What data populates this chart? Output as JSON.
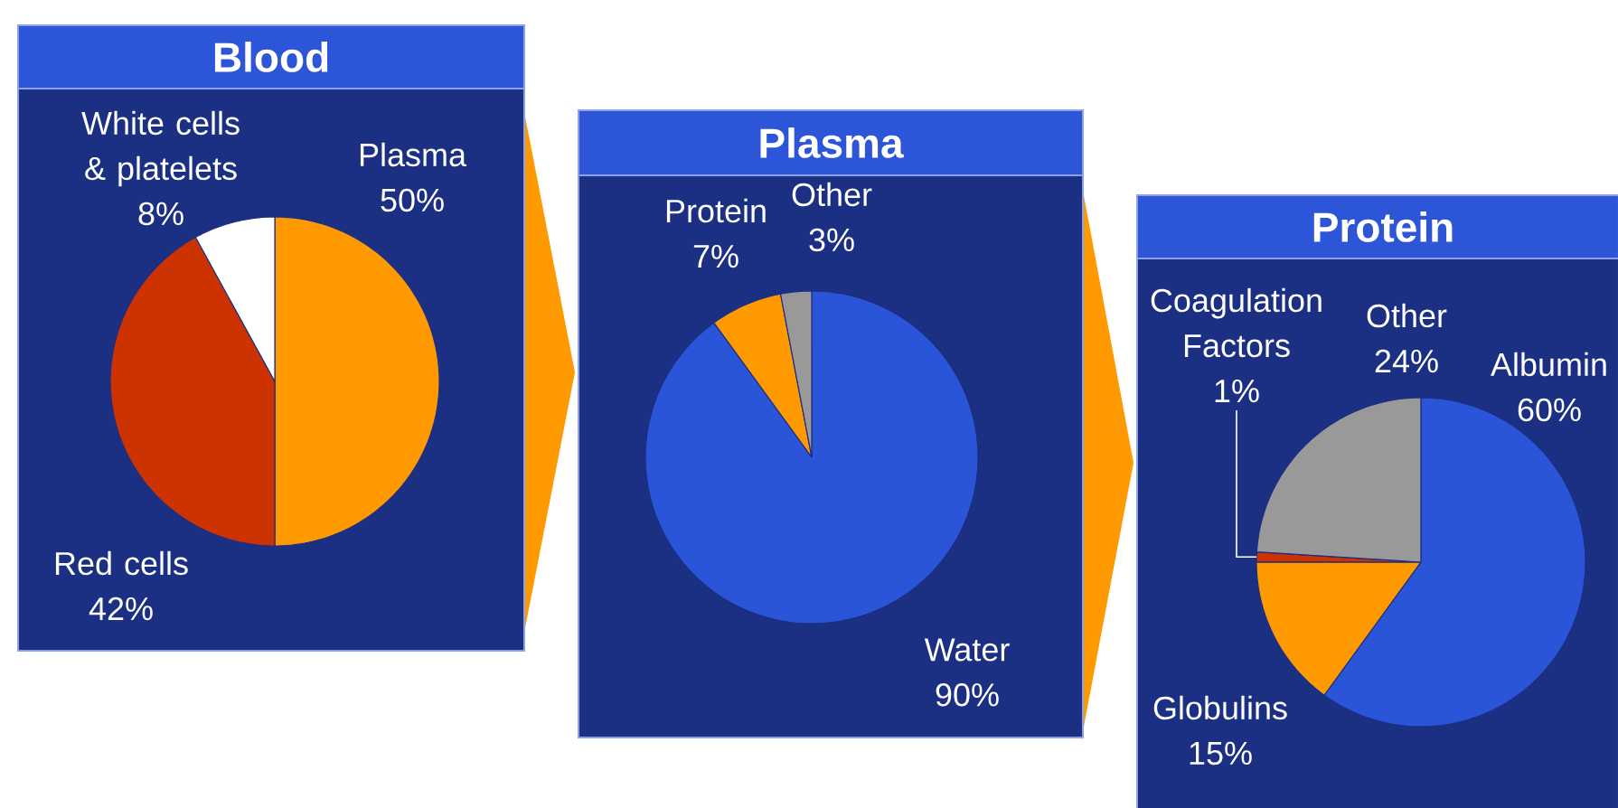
{
  "chart_data": [
    {
      "type": "pie",
      "title": "Blood",
      "categories": [
        "Plasma",
        "Red cells",
        "White cells & platelets"
      ],
      "values": [
        50,
        42,
        8
      ],
      "colors": [
        "#ff9900",
        "#cc3300",
        "#ffffff"
      ],
      "value_labels": [
        "50%",
        "42%",
        "8%"
      ]
    },
    {
      "type": "pie",
      "title": "Plasma",
      "categories": [
        "Water",
        "Protein",
        "Other"
      ],
      "values": [
        90,
        7,
        3
      ],
      "colors": [
        "#2b55d9",
        "#ff9900",
        "#999999"
      ],
      "value_labels": [
        "90%",
        "7%",
        "3%"
      ]
    },
    {
      "type": "pie",
      "title": "Protein",
      "categories": [
        "Albumin",
        "Globulins",
        "Coagulation Factors",
        "Other"
      ],
      "values": [
        60,
        15,
        1,
        24
      ],
      "colors": [
        "#2b55d9",
        "#ff9900",
        "#cc3300",
        "#999999"
      ],
      "value_labels": [
        "60%",
        "15%",
        "1%",
        "24%"
      ]
    }
  ]
}
